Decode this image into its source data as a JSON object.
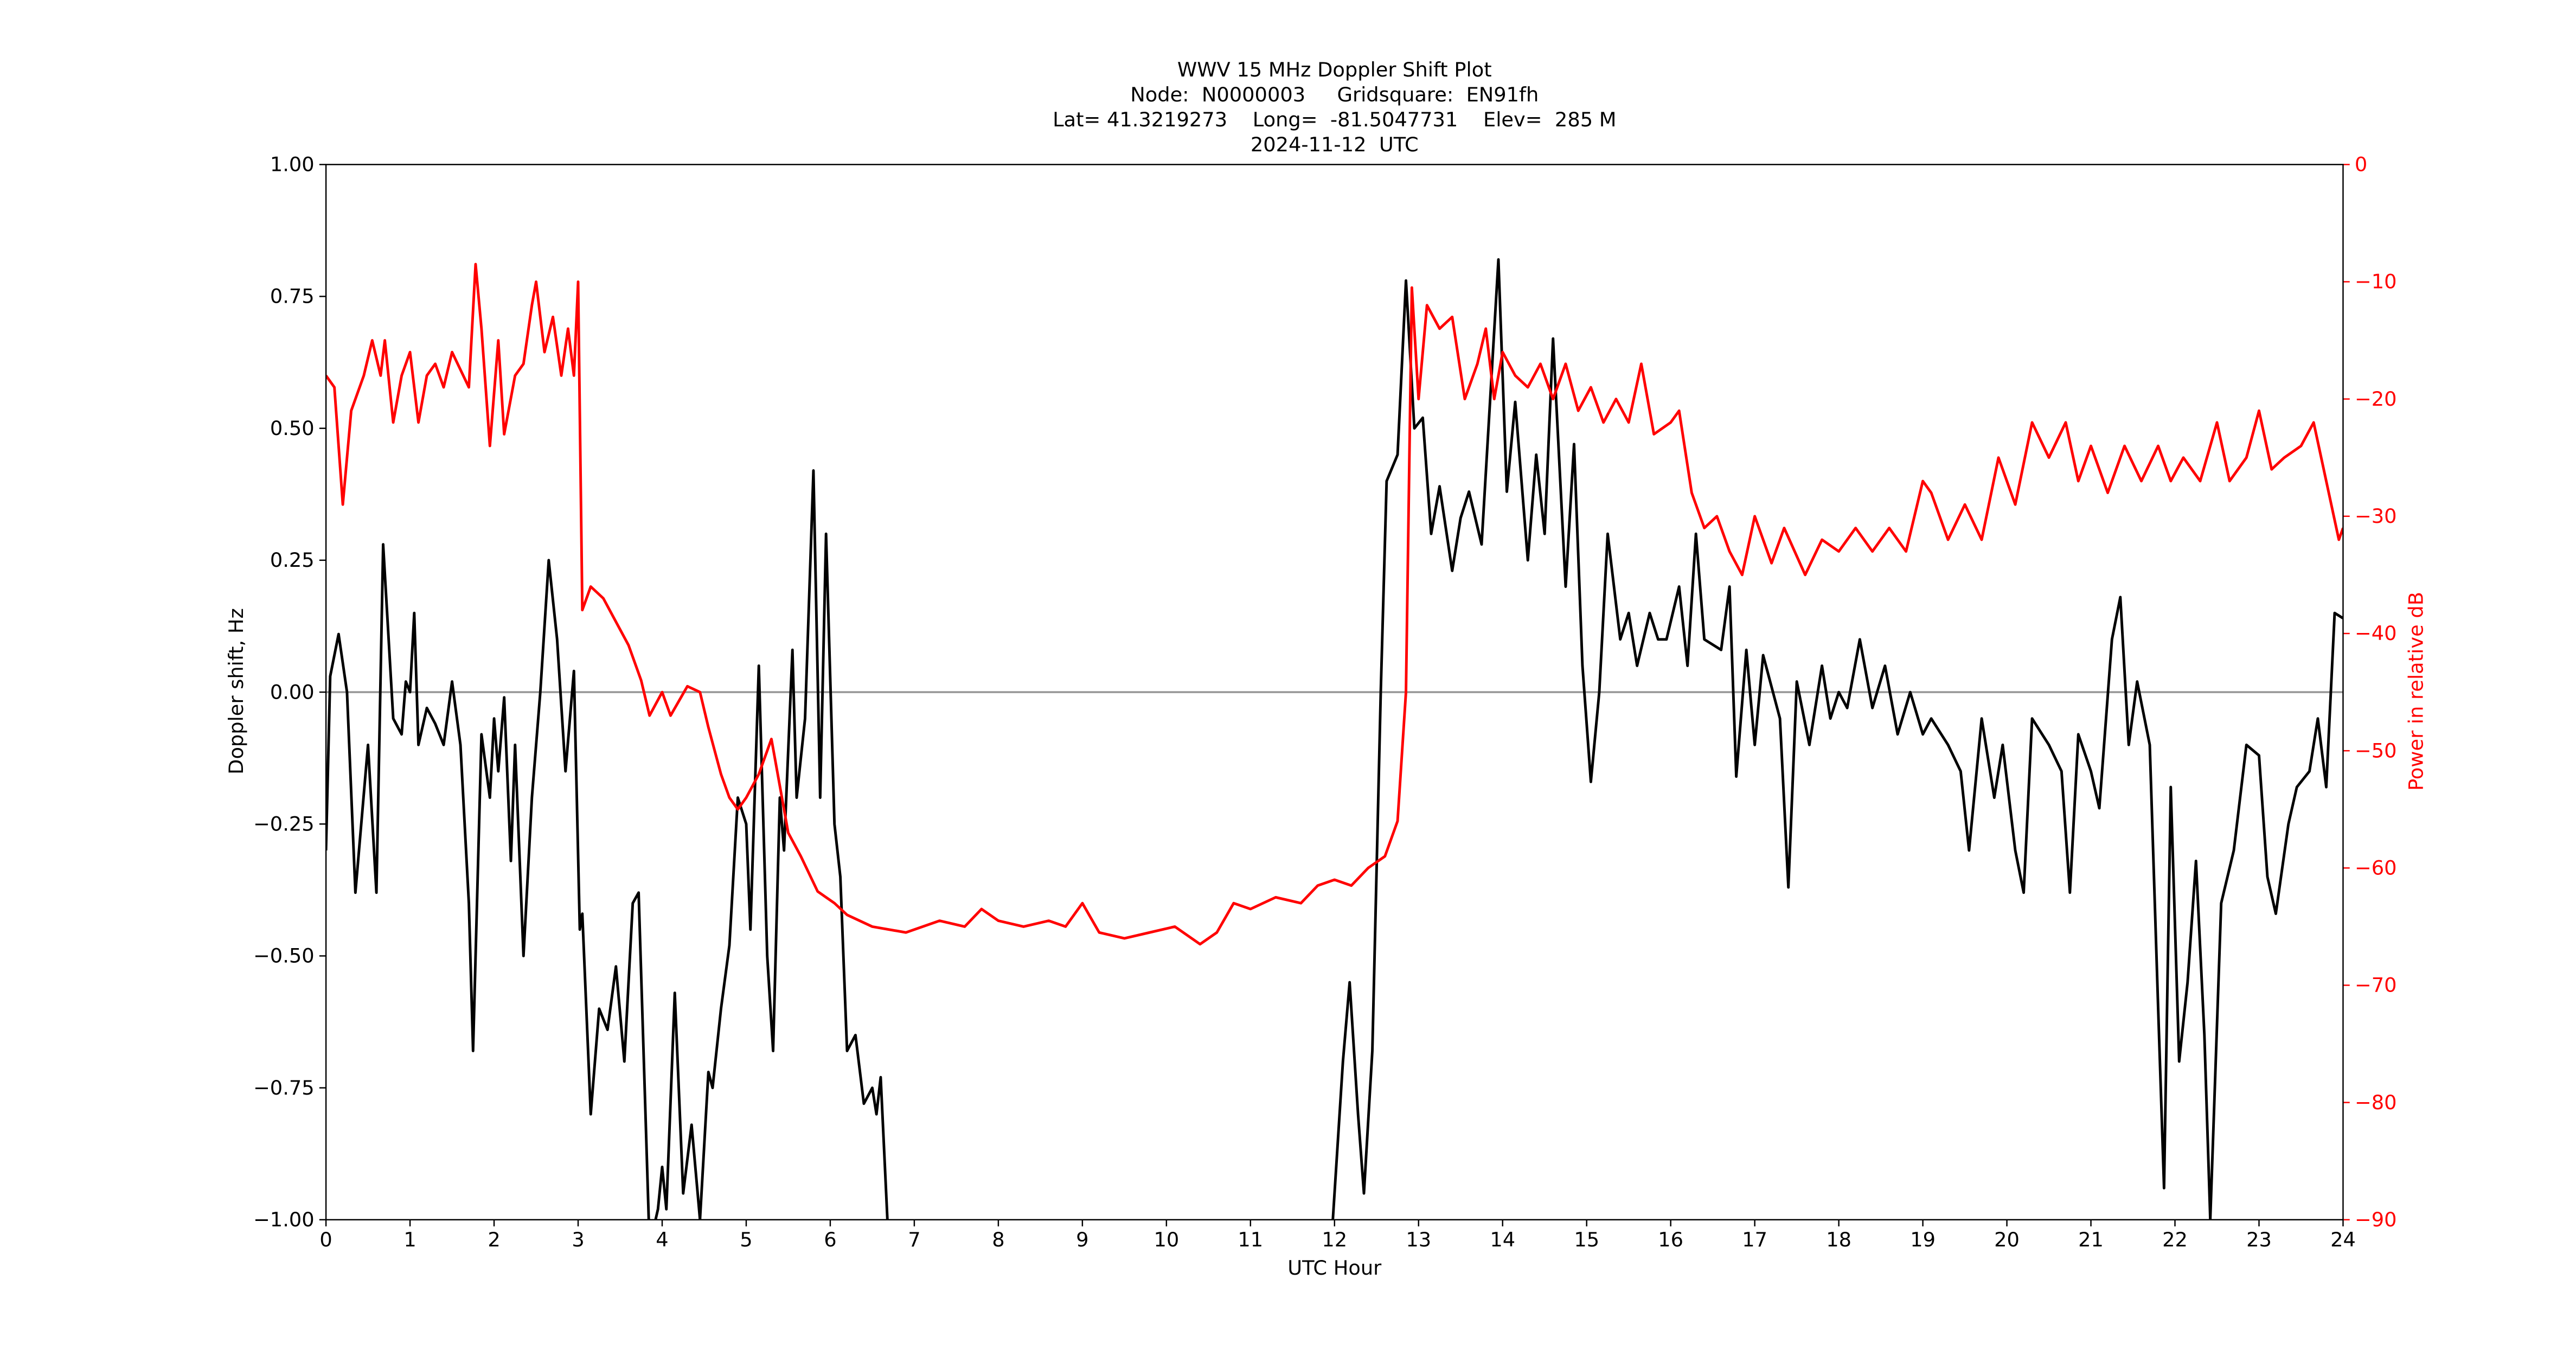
{
  "chart_data": {
    "type": "line",
    "title": [
      "WWV 15 MHz Doppler Shift Plot",
      "Node:  N0000003     Gridsquare:  EN91fh",
      "Lat= 41.3219273    Long=  -81.5047731    Elev=  285 M",
      "2024-11-12  UTC"
    ],
    "xlabel": "UTC Hour",
    "ylabel": "Doppler shift, Hz",
    "y2label": "Power in relative dB",
    "xlim": [
      0,
      24
    ],
    "xticks": [
      0,
      1,
      2,
      3,
      4,
      5,
      6,
      7,
      8,
      9,
      10,
      11,
      12,
      13,
      14,
      15,
      16,
      17,
      18,
      19,
      20,
      21,
      22,
      23,
      24
    ],
    "ylim": [
      -1,
      1
    ],
    "yticks": [
      {
        "value": -1,
        "label": "−1.00"
      },
      {
        "value": -0.75,
        "label": "−0.75"
      },
      {
        "value": -0.5,
        "label": "−0.50"
      },
      {
        "value": -0.25,
        "label": "−0.25"
      },
      {
        "value": 0,
        "label": "0.00"
      },
      {
        "value": 0.25,
        "label": "0.25"
      },
      {
        "value": 0.5,
        "label": "0.50"
      },
      {
        "value": 0.75,
        "label": "0.75"
      },
      {
        "value": 1,
        "label": "1.00"
      }
    ],
    "y2lim": [
      -90,
      0
    ],
    "y2ticks": [
      {
        "value": -90,
        "label": "−90"
      },
      {
        "value": -80,
        "label": "−80"
      },
      {
        "value": -70,
        "label": "−70"
      },
      {
        "value": -60,
        "label": "−60"
      },
      {
        "value": -50,
        "label": "−50"
      },
      {
        "value": -40,
        "label": "−40"
      },
      {
        "value": -30,
        "label": "−30"
      },
      {
        "value": -20,
        "label": "−20"
      },
      {
        "value": -10,
        "label": "−10"
      },
      0
    ],
    "zero_line": true,
    "series": [
      {
        "color": "#000000",
        "x": [
          0,
          0.05,
          0.15,
          0.25,
          0.35,
          0.5,
          0.6,
          0.68,
          0.8,
          0.9,
          0.95,
          1.0,
          1.05,
          1.1,
          1.2,
          1.3,
          1.4,
          1.5,
          1.6,
          1.7,
          1.75,
          1.85,
          1.95,
          2.0,
          2.05,
          2.12,
          2.2,
          2.25,
          2.35,
          2.45,
          2.55,
          2.65,
          2.75,
          2.85,
          2.95,
          3.02,
          3.05,
          3.15,
          3.25,
          3.35,
          3.45,
          3.55,
          3.65,
          3.72,
          3.85,
          3.95,
          4.0,
          4.05,
          4.15,
          4.25,
          4.35,
          4.45,
          4.55,
          4.6,
          4.7,
          4.8,
          4.9,
          5.0,
          5.05,
          5.15,
          5.25,
          5.32,
          5.4,
          5.45,
          5.55,
          5.6,
          5.7,
          5.8,
          5.88,
          5.95,
          6.05,
          6.12,
          6.2,
          6.3,
          6.4,
          6.5,
          6.55,
          6.6,
          6.68,
          9.0,
          11.98,
          12.1,
          12.18,
          12.28,
          12.35,
          12.45,
          12.55,
          12.62,
          12.75,
          12.85,
          12.95,
          13.05,
          13.15,
          13.25,
          13.4,
          13.5,
          13.6,
          13.75,
          13.85,
          13.95,
          14.05,
          14.15,
          14.3,
          14.4,
          14.5,
          14.6,
          14.75,
          14.85,
          14.95,
          15.05,
          15.15,
          15.25,
          15.4,
          15.5,
          15.6,
          15.75,
          15.85,
          15.95,
          16.1,
          16.2,
          16.3,
          16.4,
          16.6,
          16.7,
          16.78,
          16.9,
          17.0,
          17.1,
          17.3,
          17.4,
          17.5,
          17.65,
          17.8,
          17.9,
          18.0,
          18.1,
          18.25,
          18.4,
          18.55,
          18.7,
          18.85,
          19.0,
          19.1,
          19.3,
          19.45,
          19.55,
          19.7,
          19.85,
          19.95,
          20.1,
          20.2,
          20.3,
          20.5,
          20.65,
          20.75,
          20.85,
          21.0,
          21.1,
          21.25,
          21.35,
          21.45,
          21.55,
          21.7,
          21.8,
          21.87,
          21.95,
          22.05,
          22.15,
          22.25,
          22.35,
          22.42,
          22.55,
          22.7,
          22.85,
          23.0,
          23.1,
          23.2,
          23.35,
          23.45,
          23.6,
          23.7,
          23.8,
          23.9,
          24.0
        ],
        "values": [
          -0.3,
          0.03,
          0.11,
          0.0,
          -0.38,
          -0.1,
          -0.38,
          0.28,
          -0.05,
          -0.08,
          0.02,
          0.0,
          0.15,
          -0.1,
          -0.03,
          -0.06,
          -0.1,
          0.02,
          -0.1,
          -0.4,
          -0.68,
          -0.08,
          -0.2,
          -0.05,
          -0.15,
          -0.01,
          -0.32,
          -0.1,
          -0.5,
          -0.2,
          0.0,
          0.25,
          0.1,
          -0.15,
          0.04,
          -0.45,
          -0.42,
          -0.8,
          -0.6,
          -0.64,
          -0.52,
          -0.7,
          -0.4,
          -0.38,
          -1.05,
          -0.98,
          -0.9,
          -0.98,
          -0.57,
          -0.95,
          -0.82,
          -1.0,
          -0.72,
          -0.75,
          -0.6,
          -0.48,
          -0.2,
          -0.25,
          -0.45,
          0.05,
          -0.5,
          -0.68,
          -0.2,
          -0.3,
          0.08,
          -0.2,
          -0.05,
          0.42,
          -0.2,
          0.3,
          -0.25,
          -0.35,
          -0.68,
          -0.65,
          -0.78,
          -0.75,
          -0.8,
          -0.73,
          -1.0,
          null,
          -1.0,
          -0.7,
          -0.55,
          -0.8,
          -0.95,
          -0.68,
          0.0,
          0.4,
          0.45,
          0.78,
          0.5,
          0.52,
          0.3,
          0.39,
          0.23,
          0.33,
          0.38,
          0.28,
          0.55,
          0.82,
          0.38,
          0.55,
          0.25,
          0.45,
          0.3,
          0.67,
          0.2,
          0.47,
          0.05,
          -0.17,
          0.0,
          0.3,
          0.1,
          0.15,
          0.05,
          0.15,
          0.1,
          0.1,
          0.2,
          0.05,
          0.3,
          0.1,
          0.08,
          0.2,
          -0.16,
          0.08,
          -0.1,
          0.07,
          -0.05,
          -0.37,
          0.02,
          -0.1,
          0.05,
          -0.05,
          0.0,
          -0.03,
          0.1,
          -0.03,
          0.05,
          -0.08,
          0.0,
          -0.08,
          -0.05,
          -0.1,
          -0.15,
          -0.3,
          -0.05,
          -0.2,
          -0.1,
          -0.3,
          -0.38,
          -0.05,
          -0.1,
          -0.15,
          -0.38,
          -0.08,
          -0.15,
          -0.22,
          0.1,
          0.18,
          -0.1,
          0.02,
          -0.1,
          -0.6,
          -0.94,
          -0.18,
          -0.7,
          -0.55,
          -0.32,
          -0.65,
          -1.0,
          -0.4,
          -0.3,
          -0.1,
          -0.12,
          -0.35,
          -0.42,
          -0.25,
          -0.18,
          -0.15,
          -0.05,
          -0.18,
          0.15,
          0.14
        ]
      },
      {
        "color": "#ff0000",
        "axis": "y2",
        "x": [
          0,
          0.1,
          0.2,
          0.3,
          0.45,
          0.55,
          0.65,
          0.7,
          0.8,
          0.9,
          1.0,
          1.1,
          1.2,
          1.3,
          1.4,
          1.5,
          1.7,
          1.78,
          1.85,
          1.95,
          2.05,
          2.12,
          2.25,
          2.35,
          2.45,
          2.5,
          2.6,
          2.7,
          2.8,
          2.88,
          2.95,
          3.0,
          3.05,
          3.15,
          3.3,
          3.45,
          3.6,
          3.75,
          3.85,
          4.0,
          4.1,
          4.3,
          4.45,
          4.55,
          4.7,
          4.8,
          4.9,
          5.0,
          5.15,
          5.3,
          5.4,
          5.5,
          5.65,
          5.85,
          6.05,
          6.2,
          6.5,
          6.9,
          7.3,
          7.6,
          7.8,
          8.0,
          8.3,
          8.6,
          8.8,
          9.0,
          9.2,
          9.5,
          9.8,
          10.1,
          10.4,
          10.6,
          10.8,
          11.0,
          11.3,
          11.6,
          11.8,
          12.0,
          12.2,
          12.4,
          12.6,
          12.75,
          12.85,
          12.92,
          13.0,
          13.1,
          13.25,
          13.4,
          13.55,
          13.7,
          13.8,
          13.9,
          14.0,
          14.15,
          14.3,
          14.45,
          14.6,
          14.75,
          14.9,
          15.05,
          15.2,
          15.35,
          15.5,
          15.65,
          15.8,
          16.0,
          16.1,
          16.25,
          16.4,
          16.55,
          16.7,
          16.85,
          17.0,
          17.2,
          17.35,
          17.6,
          17.8,
          18.0,
          18.2,
          18.4,
          18.6,
          18.8,
          19.0,
          19.1,
          19.3,
          19.5,
          19.7,
          19.9,
          20.1,
          20.3,
          20.5,
          20.7,
          20.85,
          21.0,
          21.2,
          21.4,
          21.6,
          21.8,
          21.95,
          22.1,
          22.3,
          22.5,
          22.65,
          22.85,
          23.0,
          23.15,
          23.3,
          23.5,
          23.65,
          23.8,
          23.95,
          24.0
        ],
        "values": [
          -18,
          -19,
          -29,
          -21,
          -18,
          -15,
          -18,
          -15,
          -22,
          -18,
          -16,
          -22,
          -18,
          -17,
          -19,
          -16,
          -19,
          -8.5,
          -14,
          -24,
          -15,
          -23,
          -18,
          -17,
          -12,
          -10,
          -16,
          -13,
          -18,
          -14,
          -18,
          -10,
          -38,
          -36,
          -37,
          -39,
          -41,
          -44,
          -47,
          -45,
          -47,
          -44.5,
          -45,
          -48,
          -52,
          -54,
          -55,
          -54,
          -52,
          -49,
          -53,
          -57,
          -59,
          -62,
          -63,
          -64,
          -65,
          -65.5,
          -64.5,
          -65,
          -63.5,
          -64.5,
          -65,
          -64.5,
          -65,
          -63,
          -65.5,
          -66,
          -65.5,
          -65,
          -66.5,
          -65.5,
          -63,
          -63.5,
          -62.5,
          -63,
          -61.5,
          -61,
          -61.5,
          -60,
          -59,
          -56,
          -45,
          -10.5,
          -20,
          -12,
          -14,
          -13,
          -20,
          -17,
          -14,
          -20,
          -16,
          -18,
          -19,
          -17,
          -20,
          -17,
          -21,
          -19,
          -22,
          -20,
          -22,
          -17,
          -23,
          -22,
          -21,
          -28,
          -31,
          -30,
          -33,
          -35,
          -30,
          -34,
          -31,
          -35,
          -32,
          -33,
          -31,
          -33,
          -31,
          -33,
          -27,
          -28,
          -32,
          -29,
          -32,
          -25,
          -29,
          -22,
          -25,
          -22,
          -27,
          -24,
          -28,
          -24,
          -27,
          -24,
          -27,
          -25,
          -27,
          -22,
          -27,
          -25,
          -21,
          -26,
          -25,
          -24,
          -22,
          -27,
          -32,
          -31
        ]
      }
    ]
  }
}
